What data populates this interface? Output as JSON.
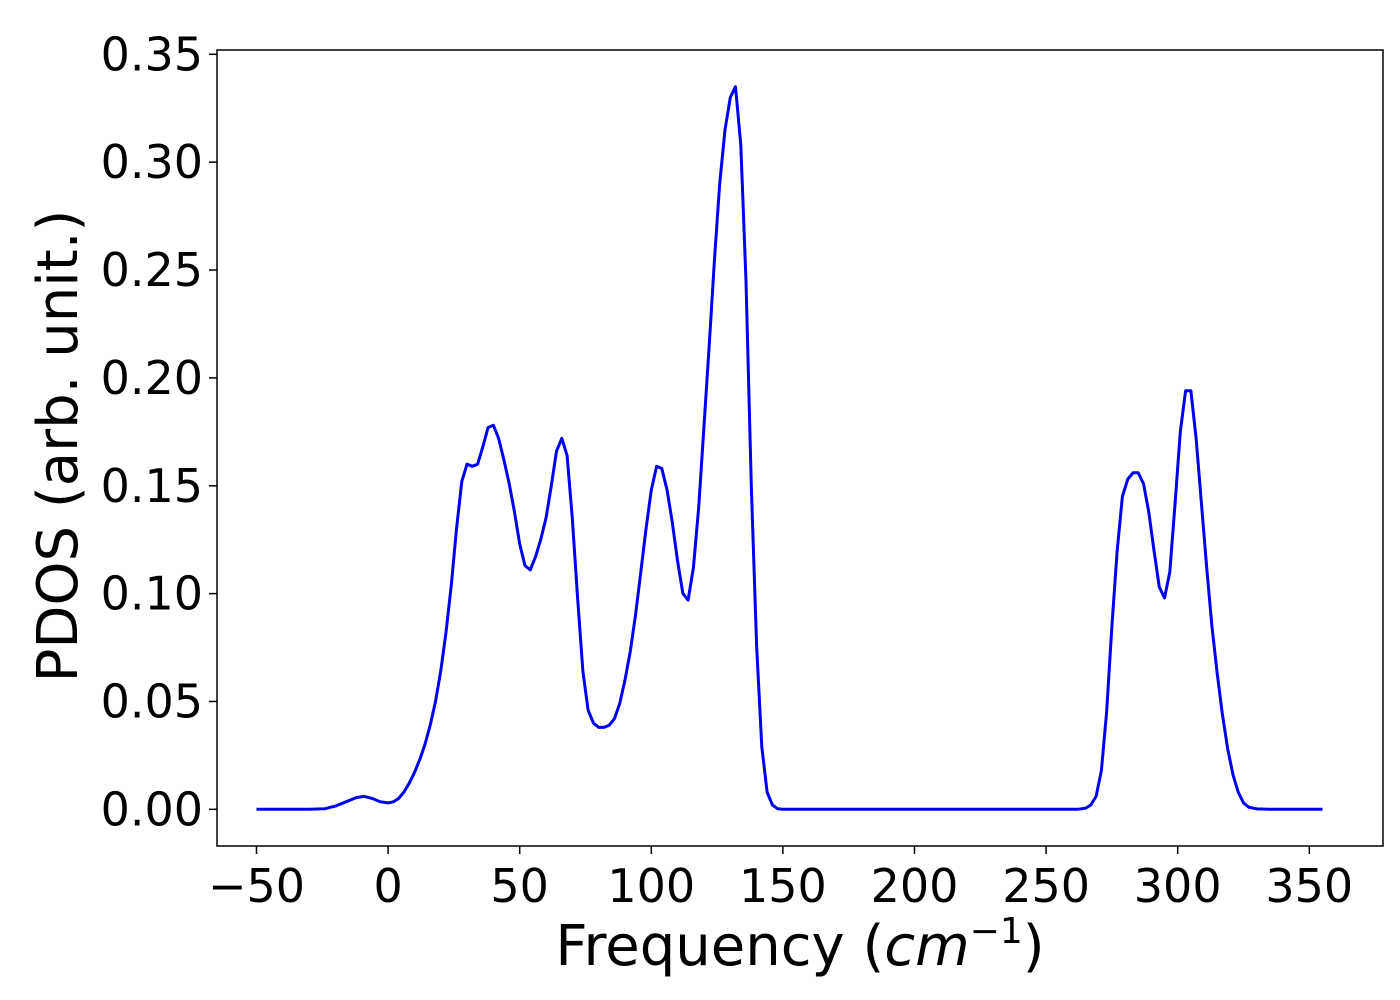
{
  "chart_data": {
    "type": "line",
    "title": "",
    "xlabel": "Frequency (cm⁻¹)",
    "xlabel_parts": {
      "prefix": "Frequency (",
      "base": "cm",
      "sup": "−1",
      "suffix": ")"
    },
    "ylabel": "PDOS (arb. unit.)",
    "xlim": [
      -65,
      378
    ],
    "ylim": [
      -0.017,
      0.352
    ],
    "xticks": [
      -50,
      0,
      50,
      100,
      150,
      200,
      250,
      300,
      350
    ],
    "xtick_labels": [
      "−50",
      "0",
      "50",
      "100",
      "150",
      "200",
      "250",
      "300",
      "350"
    ],
    "yticks": [
      0.0,
      0.05,
      0.1,
      0.15,
      0.2,
      0.25,
      0.3,
      0.35
    ],
    "ytick_labels": [
      "0.00",
      "0.05",
      "0.10",
      "0.15",
      "0.20",
      "0.25",
      "0.30",
      "0.35"
    ],
    "grid": false,
    "legend": false,
    "series": [
      {
        "color": "#0000ee",
        "x": [
          -50,
          -30,
          -24,
          -20,
          -16,
          -12,
          -9,
          -6,
          -3,
          0,
          2,
          4,
          6,
          8,
          10,
          12,
          14,
          16,
          18,
          20,
          22,
          24,
          26,
          28,
          30,
          32,
          34,
          36,
          38,
          40,
          42,
          44,
          46,
          48,
          50,
          52,
          54,
          56,
          58,
          60,
          62,
          64,
          66,
          68,
          70,
          72,
          74,
          76,
          78,
          80,
          82,
          84,
          86,
          88,
          90,
          92,
          94,
          96,
          98,
          100,
          102,
          104,
          106,
          108,
          110,
          112,
          114,
          116,
          118,
          120,
          122,
          124,
          126,
          128,
          130,
          132,
          134,
          136,
          138,
          140,
          142,
          144,
          146,
          148,
          150,
          152,
          155,
          160,
          200,
          250,
          262,
          265,
          267,
          269,
          271,
          273,
          275,
          277,
          279,
          281,
          283,
          285,
          287,
          289,
          291,
          293,
          295,
          297,
          299,
          301,
          303,
          305,
          307,
          309,
          311,
          313,
          315,
          317,
          319,
          321,
          323,
          325,
          327,
          330,
          335,
          355
        ],
        "y": [
          0.0,
          0.0,
          0.0003,
          0.0015,
          0.0035,
          0.0055,
          0.006,
          0.005,
          0.0035,
          0.003,
          0.0035,
          0.005,
          0.008,
          0.012,
          0.017,
          0.023,
          0.03,
          0.039,
          0.05,
          0.064,
          0.082,
          0.104,
          0.13,
          0.152,
          0.16,
          0.159,
          0.16,
          0.168,
          0.177,
          0.178,
          0.172,
          0.162,
          0.151,
          0.138,
          0.123,
          0.113,
          0.111,
          0.117,
          0.125,
          0.135,
          0.15,
          0.166,
          0.172,
          0.164,
          0.135,
          0.098,
          0.064,
          0.046,
          0.04,
          0.038,
          0.038,
          0.039,
          0.042,
          0.049,
          0.06,
          0.073,
          0.09,
          0.11,
          0.13,
          0.148,
          0.159,
          0.158,
          0.148,
          0.133,
          0.115,
          0.1,
          0.097,
          0.112,
          0.14,
          0.177,
          0.215,
          0.255,
          0.29,
          0.315,
          0.33,
          0.335,
          0.308,
          0.245,
          0.15,
          0.076,
          0.029,
          0.008,
          0.002,
          0.0003,
          0.0,
          0.0,
          0.0,
          0.0,
          0.0,
          0.0,
          0.0,
          0.0005,
          0.002,
          0.006,
          0.018,
          0.045,
          0.085,
          0.12,
          0.145,
          0.153,
          0.156,
          0.156,
          0.151,
          0.138,
          0.12,
          0.103,
          0.098,
          0.11,
          0.142,
          0.175,
          0.194,
          0.194,
          0.172,
          0.142,
          0.112,
          0.085,
          0.063,
          0.044,
          0.028,
          0.016,
          0.008,
          0.003,
          0.001,
          0.0002,
          0.0,
          0.0
        ]
      }
    ]
  }
}
